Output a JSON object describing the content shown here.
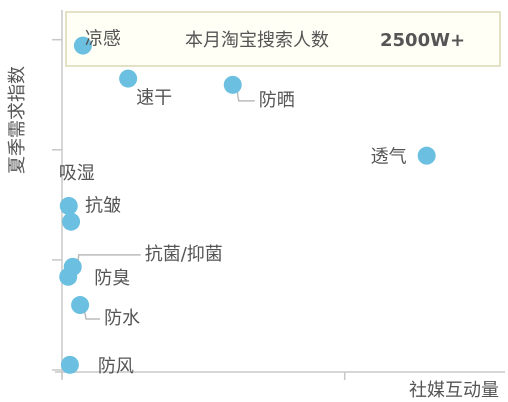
{
  "chart_data": {
    "type": "scatter",
    "x_label": "社媒互动量",
    "y_label": "夏季需求指数",
    "annotation": {
      "label": "本月淘宝搜索人数",
      "value": "2500W+"
    },
    "color": "#6bbfe0",
    "labels": [
      "凉感",
      "速干",
      "防晒",
      "透气",
      "吸湿",
      "抗皱",
      "抗菌/抑菌",
      "防臭",
      "防水",
      "防风"
    ],
    "x": [
      3.7,
      11.7,
      30.2,
      64.5,
      1.2,
      1.6,
      1.9,
      1.1,
      3.2,
      1.4
    ],
    "y": [
      88.4,
      79.4,
      77.7,
      58.4,
      44.7,
      40.4,
      28.1,
      25.4,
      17.7,
      1.4
    ],
    "xlim": [
      0,
      78
    ],
    "ylim": [
      0,
      100
    ],
    "xticks": [
      0,
      50
    ],
    "yticks": [
      0,
      30,
      60,
      90
    ]
  }
}
